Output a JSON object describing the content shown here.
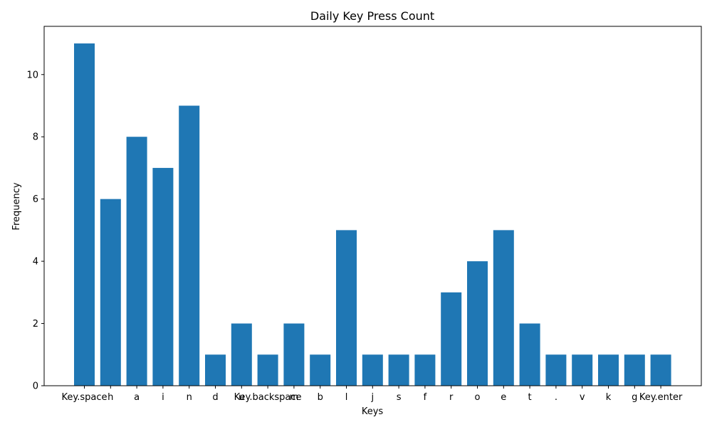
{
  "chart_data": {
    "type": "bar",
    "title": "Daily Key Press Count",
    "xlabel": "Keys",
    "ylabel": "Frequency",
    "categories": [
      "Key.space",
      "h",
      "a",
      "i",
      "n",
      "d",
      "u",
      "Key.backspace",
      "m",
      "b",
      "l",
      "j",
      "s",
      "f",
      "r",
      "o",
      "e",
      "t",
      ".",
      "v",
      "k",
      "g",
      "Key.enter"
    ],
    "values": [
      11,
      6,
      8,
      7,
      9,
      1,
      2,
      1,
      2,
      1,
      5,
      1,
      1,
      1,
      3,
      4,
      5,
      2,
      1,
      1,
      1,
      1,
      1
    ],
    "yticks": [
      0,
      2,
      4,
      6,
      8,
      10
    ],
    "ylim": [
      0,
      11.55
    ],
    "grid": false,
    "bar_color": "#1f77b4"
  }
}
